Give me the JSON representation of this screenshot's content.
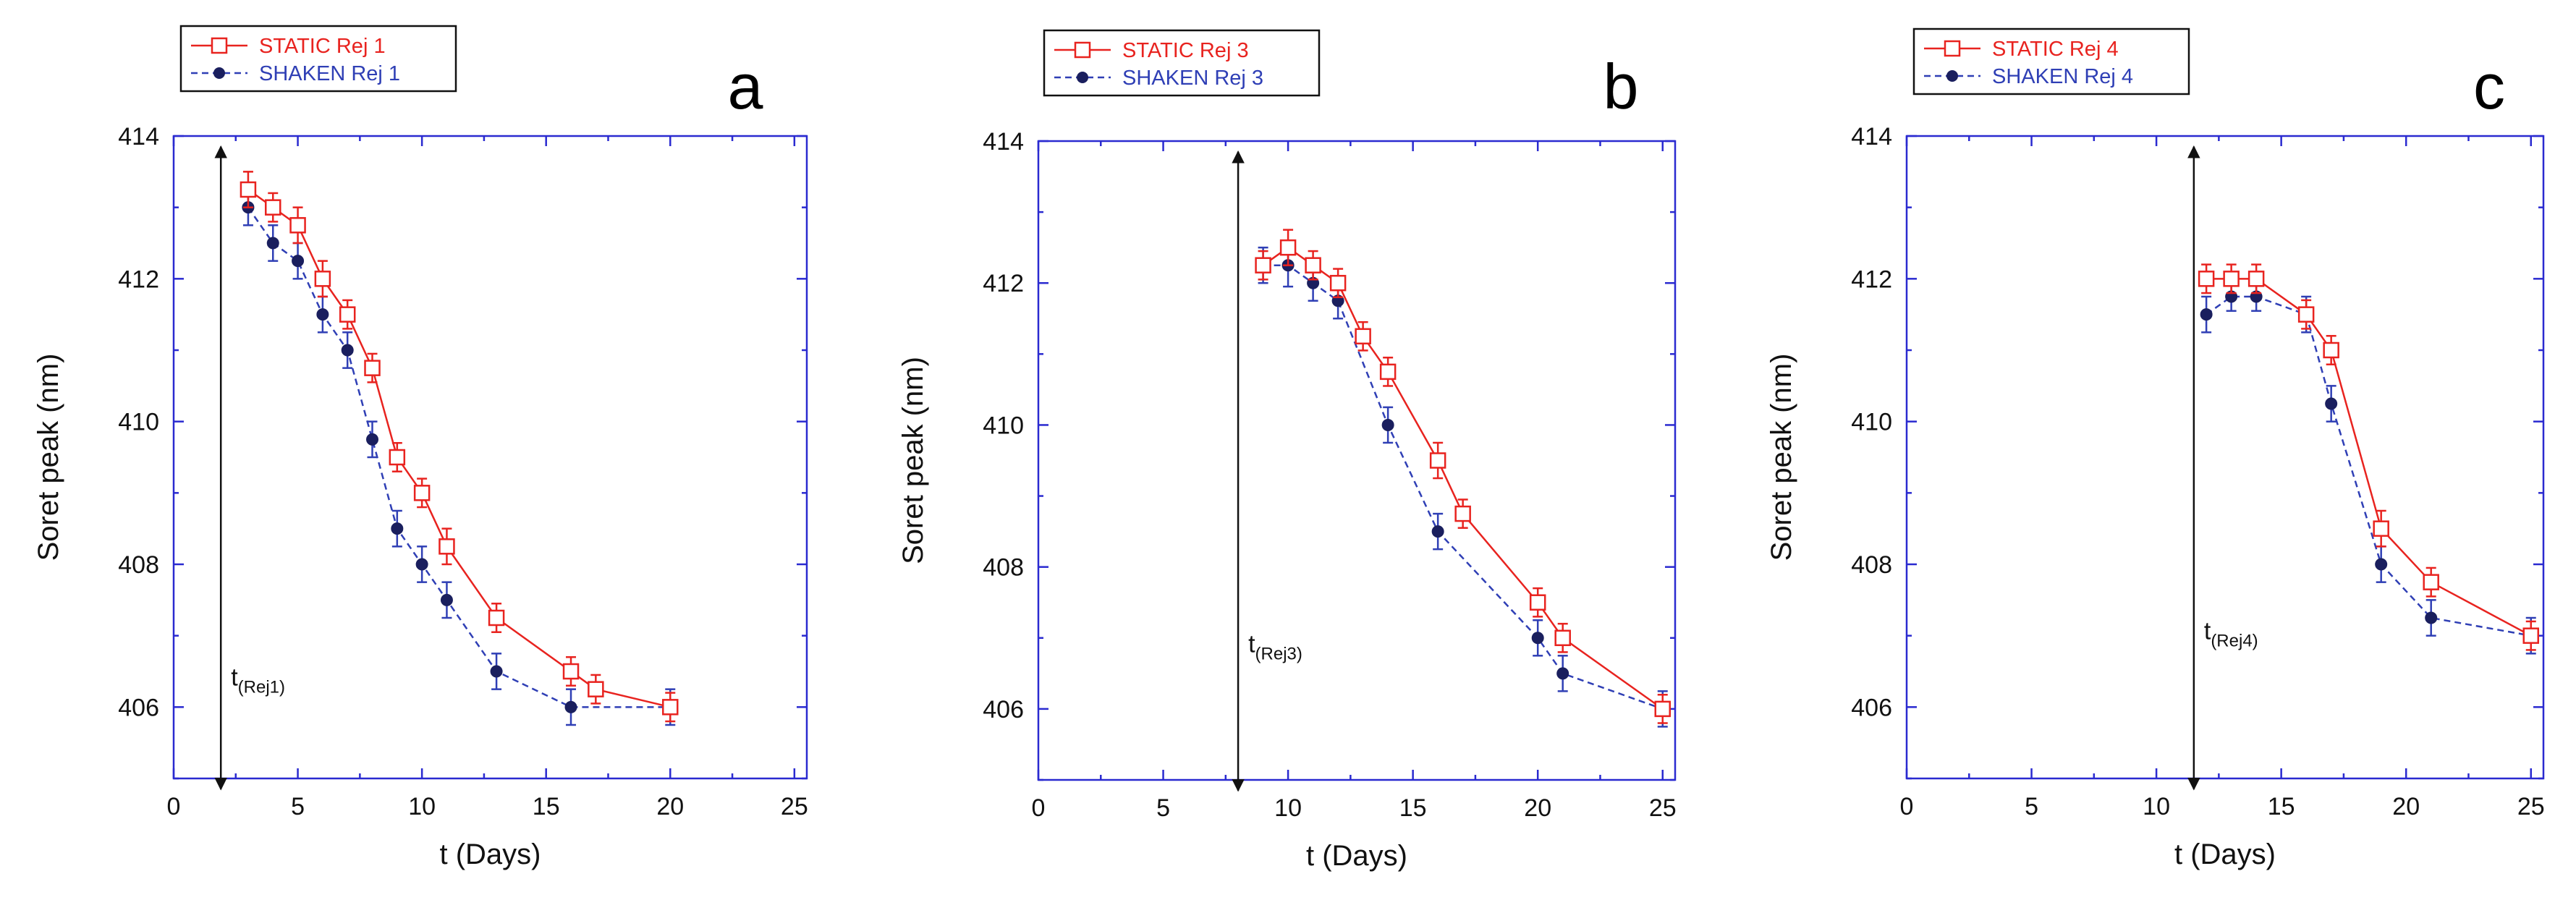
{
  "colors": {
    "static": "#e8231f",
    "shaken": "#2f3fb5",
    "axis": "#2a2ad0",
    "text": "#111111"
  },
  "chart_data": [
    {
      "type": "line",
      "panel_label": "a",
      "xlabel": "t  (Days)",
      "ylabel": "Soret  peak  (nm)",
      "xlim": [
        0,
        25.5
      ],
      "ylim": [
        405,
        414
      ],
      "xticks": [
        0,
        5,
        10,
        15,
        20,
        25
      ],
      "yticks": [
        406,
        408,
        410,
        412,
        414
      ],
      "legend": "top-left, outside plot",
      "annotation": {
        "base": "t",
        "sub": "(Rej1)",
        "x": 1.9,
        "y_from": 404.85,
        "y_to": 413.85,
        "label_y": 406.3
      },
      "series": [
        {
          "name": "STATIC Rej 1",
          "marker": "open-square",
          "line": "solid",
          "color_key": "static",
          "x": [
            3,
            4,
            5,
            6,
            7,
            8,
            9,
            10,
            11,
            13,
            16,
            17,
            20
          ],
          "y": [
            413.25,
            413.0,
            412.75,
            412.0,
            411.5,
            410.75,
            409.5,
            409.0,
            408.25,
            407.25,
            406.5,
            406.25,
            406.0
          ],
          "err": [
            0.25,
            0.2,
            0.25,
            0.25,
            0.2,
            0.2,
            0.2,
            0.2,
            0.25,
            0.2,
            0.2,
            0.2,
            0.2
          ]
        },
        {
          "name": "SHAKEN Rej 1",
          "marker": "filled-circle",
          "line": "dashed",
          "color_key": "shaken",
          "x": [
            3,
            4,
            5,
            6,
            7,
            8,
            9,
            10,
            11,
            13,
            16,
            20
          ],
          "y": [
            413.0,
            412.5,
            412.25,
            411.5,
            411.0,
            409.75,
            408.5,
            408.0,
            407.5,
            406.5,
            406.0,
            406.0
          ],
          "err": [
            0.25,
            0.25,
            0.25,
            0.25,
            0.25,
            0.25,
            0.25,
            0.25,
            0.25,
            0.25,
            0.25,
            0.25
          ]
        }
      ]
    },
    {
      "type": "line",
      "panel_label": "b",
      "xlabel": "t  (Days)",
      "ylabel": "Soret  peak  (nm)",
      "xlim": [
        0,
        25.5
      ],
      "ylim": [
        405,
        414
      ],
      "xticks": [
        0,
        5,
        10,
        15,
        20,
        25
      ],
      "yticks": [
        406,
        408,
        410,
        412,
        414
      ],
      "legend": "top-left, outside plot",
      "annotation": {
        "base": "t",
        "sub": "(Rej3)",
        "x": 8.0,
        "y_from": 404.85,
        "y_to": 413.85,
        "label_y": 406.8
      },
      "series": [
        {
          "name": "STATIC Rej 3",
          "marker": "open-square",
          "line": "solid",
          "color_key": "static",
          "x": [
            9,
            10,
            11,
            12,
            13,
            14,
            16,
            17,
            20,
            21,
            25
          ],
          "y": [
            412.25,
            412.5,
            412.25,
            412.0,
            411.25,
            410.75,
            409.5,
            408.75,
            407.5,
            407.0,
            406.0
          ],
          "err": [
            0.2,
            0.25,
            0.2,
            0.2,
            0.2,
            0.2,
            0.25,
            0.2,
            0.2,
            0.2,
            0.2
          ]
        },
        {
          "name": "SHAKEN Rej 3",
          "marker": "filled-circle",
          "line": "dashed",
          "color_key": "shaken",
          "x": [
            9,
            10,
            11,
            12,
            14,
            16,
            20,
            21,
            25
          ],
          "y": [
            412.25,
            412.25,
            412.0,
            411.75,
            410.0,
            408.5,
            407.0,
            406.5,
            406.0
          ],
          "err": [
            0.25,
            0.3,
            0.25,
            0.25,
            0.25,
            0.25,
            0.25,
            0.25,
            0.25
          ]
        }
      ]
    },
    {
      "type": "line",
      "panel_label": "c",
      "xlabel": "t  (Days)",
      "ylabel": "Soret  peak  (nm)",
      "xlim": [
        0,
        25.5
      ],
      "ylim": [
        405,
        414
      ],
      "xticks": [
        0,
        5,
        10,
        15,
        20,
        25
      ],
      "yticks": [
        406,
        408,
        410,
        412,
        414
      ],
      "legend": "top-left, outside plot",
      "annotation": {
        "base": "t",
        "sub": "(Rej4)",
        "x": 11.5,
        "y_from": 404.85,
        "y_to": 413.85,
        "label_y": 406.95
      },
      "series": [
        {
          "name": "STATIC Rej 4",
          "marker": "open-square",
          "line": "solid",
          "color_key": "static",
          "x": [
            12,
            13,
            14,
            16,
            17,
            19,
            21,
            25
          ],
          "y": [
            412.0,
            412.0,
            412.0,
            411.5,
            411.0,
            408.5,
            407.75,
            407.0
          ],
          "err": [
            0.2,
            0.2,
            0.2,
            0.2,
            0.2,
            0.25,
            0.2,
            0.2
          ]
        },
        {
          "name": "SHAKEN Rej 4",
          "marker": "filled-circle",
          "line": "dashed",
          "color_key": "shaken",
          "x": [
            12,
            13,
            14,
            16,
            17,
            19,
            21,
            25
          ],
          "y": [
            411.5,
            411.75,
            411.75,
            411.5,
            410.25,
            408.0,
            407.25,
            407.0
          ],
          "err": [
            0.25,
            0.2,
            0.2,
            0.25,
            0.25,
            0.25,
            0.25,
            0.25
          ]
        }
      ]
    }
  ]
}
